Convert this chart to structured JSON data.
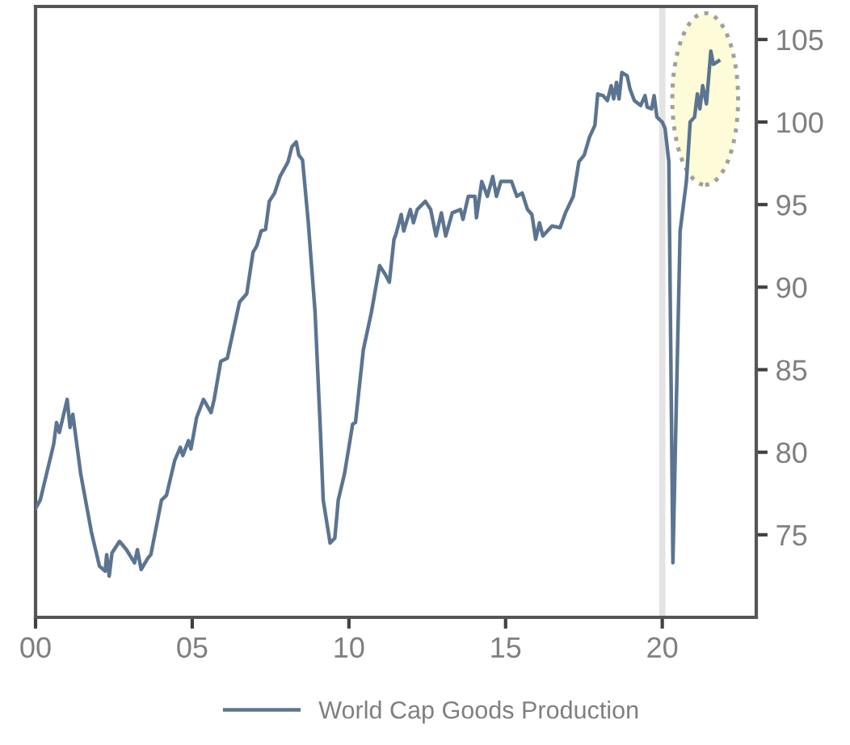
{
  "chart_data": {
    "type": "line",
    "x": [
      0,
      0.15,
      0.58,
      0.67,
      0.76,
      1.01,
      1.1,
      1.19,
      1.44,
      1.79,
      2.04,
      2.22,
      2.27,
      2.35,
      2.44,
      2.68,
      2.9,
      3.16,
      3.25,
      3.37,
      3.59,
      3.68,
      4.02,
      4.18,
      4.44,
      4.62,
      4.7,
      4.88,
      4.96,
      5.14,
      5.36,
      5.6,
      5.7,
      5.91,
      6.12,
      6.51,
      6.74,
      6.94,
      7.06,
      7.2,
      7.34,
      7.46,
      7.63,
      7.8,
      8.06,
      8.18,
      8.32,
      8.4,
      8.52,
      8.7,
      8.92,
      9.09,
      9.18,
      9.4,
      9.55,
      9.66,
      9.86,
      10.12,
      10.21,
      10.46,
      10.72,
      10.98,
      11.15,
      11.29,
      11.44,
      11.5,
      11.67,
      11.75,
      11.96,
      12.06,
      12.18,
      12.44,
      12.61,
      12.78,
      12.95,
      13.09,
      13.3,
      13.56,
      13.64,
      13.81,
      14.02,
      14.07,
      14.24,
      14.42,
      14.59,
      14.71,
      14.85,
      15.19,
      15.36,
      15.53,
      15.7,
      15.84,
      15.96,
      16.08,
      16.19,
      16.48,
      16.74,
      16.91,
      17.16,
      17.34,
      17.51,
      17.68,
      17.85,
      17.94,
      18.11,
      18.25,
      18.37,
      18.45,
      18.54,
      18.62,
      18.71,
      18.88,
      18.97,
      19.11,
      19.31,
      19.45,
      19.52,
      19.66,
      19.74,
      19.83,
      20.0,
      20.09,
      20.21,
      20.34,
      20.43,
      20.57,
      20.77,
      20.89,
      21.03,
      21.12,
      21.2,
      21.29,
      21.41,
      21.55,
      21.63,
      21.8
    ],
    "series": [
      {
        "name": "World Cap Goods Production",
        "color": "#5b7491",
        "values": [
          76.6,
          77.1,
          80.5,
          81.8,
          81.2,
          83.2,
          81.5,
          82.3,
          78.7,
          75.1,
          73.1,
          72.8,
          73.8,
          72.5,
          73.9,
          74.6,
          74.1,
          73.3,
          74.1,
          72.9,
          73.6,
          73.8,
          77.1,
          77.4,
          79.5,
          80.3,
          79.8,
          80.7,
          80.2,
          82.1,
          83.2,
          82.4,
          83.2,
          85.5,
          85.7,
          89.1,
          89.6,
          92.1,
          92.5,
          93.4,
          93.5,
          95.2,
          95.7,
          96.7,
          97.6,
          98.5,
          98.8,
          98.0,
          97.7,
          94.0,
          88.5,
          81.3,
          77.1,
          74.5,
          74.8,
          77.1,
          78.7,
          81.7,
          81.8,
          86.2,
          88.5,
          91.3,
          90.8,
          90.3,
          92.9,
          93.2,
          94.4,
          93.4,
          94.7,
          93.9,
          94.7,
          95.2,
          94.7,
          93.1,
          94.5,
          93.1,
          94.5,
          94.7,
          94.1,
          95.5,
          95.5,
          94.2,
          96.4,
          95.5,
          96.7,
          95.5,
          96.4,
          96.4,
          95.5,
          95.7,
          94.7,
          94.4,
          92.9,
          93.9,
          93.1,
          93.7,
          93.6,
          94.5,
          95.5,
          97.6,
          98.0,
          99.1,
          99.8,
          101.7,
          101.6,
          101.3,
          102.2,
          101.4,
          102.4,
          101.4,
          103.0,
          102.8,
          102.0,
          101.3,
          101.0,
          101.6,
          100.9,
          100.8,
          101.6,
          100.3,
          100.0,
          99.6,
          97.6,
          73.3,
          81.3,
          93.4,
          96.4,
          100.0,
          100.3,
          101.7,
          100.8,
          102.2,
          101.1,
          104.3,
          103.5,
          103.7
        ]
      }
    ],
    "xlim": [
      0,
      23
    ],
    "ylim": [
      70,
      107
    ],
    "xticks": [
      {
        "value": 0,
        "label": "00"
      },
      {
        "value": 5,
        "label": "05"
      },
      {
        "value": 10,
        "label": "10"
      },
      {
        "value": 15,
        "label": "15"
      },
      {
        "value": 20,
        "label": "20"
      }
    ],
    "yticks": [
      75,
      80,
      85,
      90,
      95,
      100,
      105
    ],
    "bands": [
      {
        "axis": "x",
        "from": 19.9,
        "to": 20.1,
        "color": "#e3e3e3"
      }
    ],
    "grid": false,
    "legend": "bottom",
    "marker": "none",
    "line_style": "solid"
  }
}
